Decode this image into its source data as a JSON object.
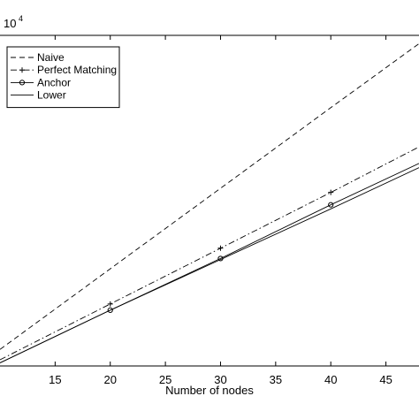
{
  "chart_data": {
    "type": "line",
    "xlabel": "Number of nodes",
    "ylabel": "",
    "exponent_label": "10",
    "exponent_power": "4",
    "xlim": [
      10,
      48
    ],
    "ylim": [
      0,
      1.6
    ],
    "xticks": [
      15,
      20,
      25,
      30,
      35,
      40,
      45
    ],
    "x": [
      10,
      20,
      30,
      40,
      48
    ],
    "grid": false,
    "legend_position": "top-left",
    "series": [
      {
        "name": "Naive",
        "style": "dashed",
        "marker": "none",
        "values": [
          0.08,
          0.47,
          0.86,
          1.25,
          1.56
        ]
      },
      {
        "name": "Perfect Matching",
        "style": "dashdot",
        "marker": "plus",
        "marker_x": [
          20,
          30,
          40
        ],
        "values": [
          0.03,
          0.3,
          0.57,
          0.84,
          1.06
        ]
      },
      {
        "name": "Anchor",
        "style": "solid",
        "marker": "circle",
        "marker_x": [
          20,
          30,
          40
        ],
        "values": [
          0.015,
          0.27,
          0.52,
          0.78,
          0.98
        ]
      },
      {
        "name": "Lower",
        "style": "solid",
        "marker": "none",
        "values": [
          0.015,
          0.27,
          0.515,
          0.76,
          0.96
        ]
      }
    ]
  }
}
